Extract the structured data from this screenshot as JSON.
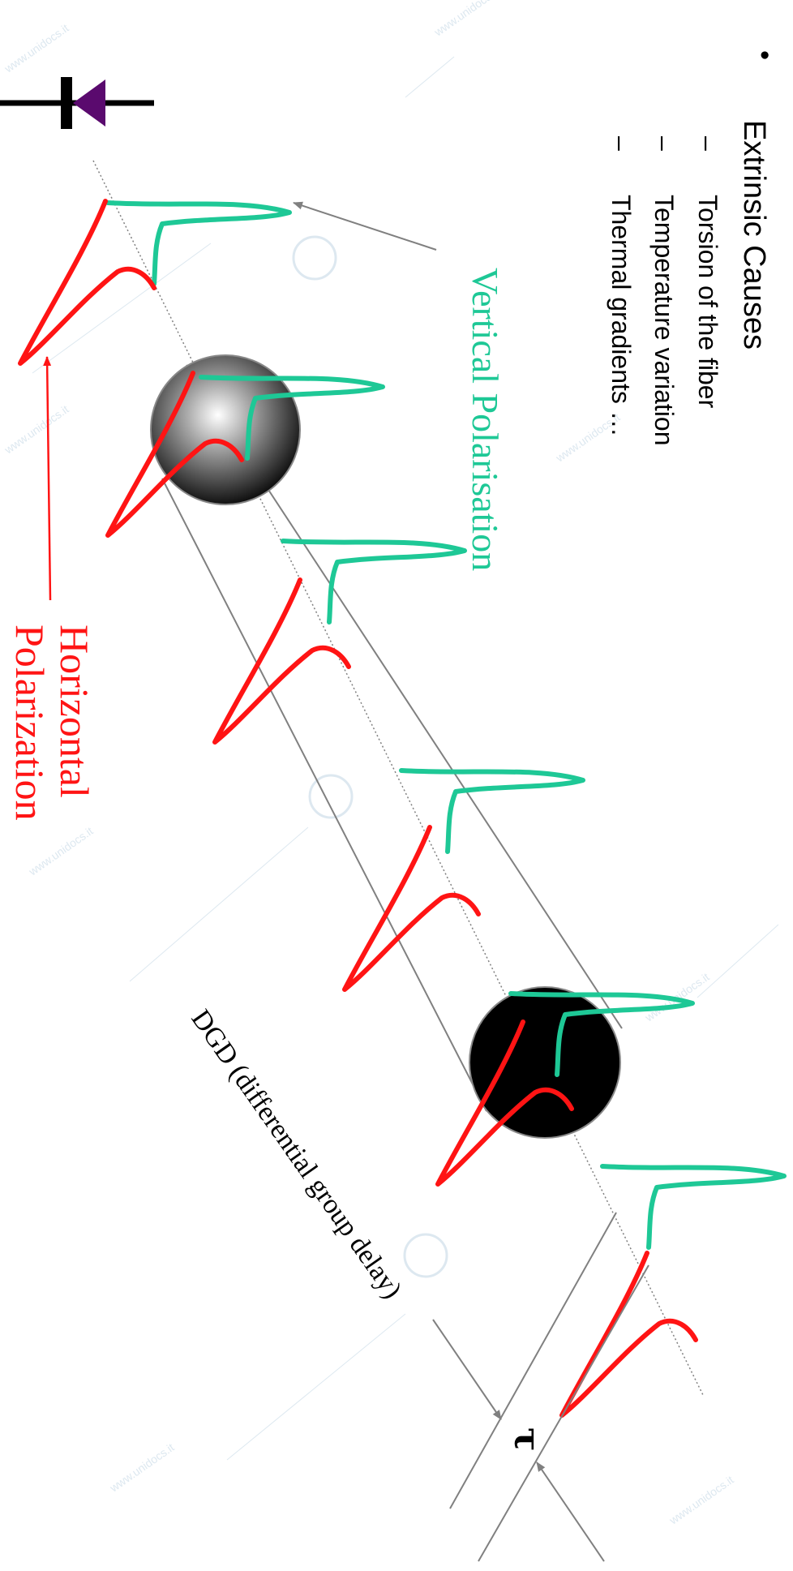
{
  "slide": {
    "bullet": "•",
    "heading": "Extrinsic Causes",
    "items": [
      {
        "dash": "–",
        "label": "Torsion of the fiber"
      },
      {
        "dash": "–",
        "label": "Temperature variation"
      },
      {
        "dash": "–",
        "label": "Thermal gradients  …"
      }
    ]
  },
  "diagram": {
    "vertical_label": "Vertical Polarisation",
    "horizontal_label_line1": "Horizontal",
    "horizontal_label_line2": "Polarization",
    "dgd_label": "DGD (differential  group delay)",
    "tau_symbol": "τ"
  },
  "watermark": "www.unidocs.it",
  "colors": {
    "vertical": "#1ec896",
    "horizontal": "#ff1414",
    "diode": "#5a0a6e",
    "arrow": "#808080"
  }
}
